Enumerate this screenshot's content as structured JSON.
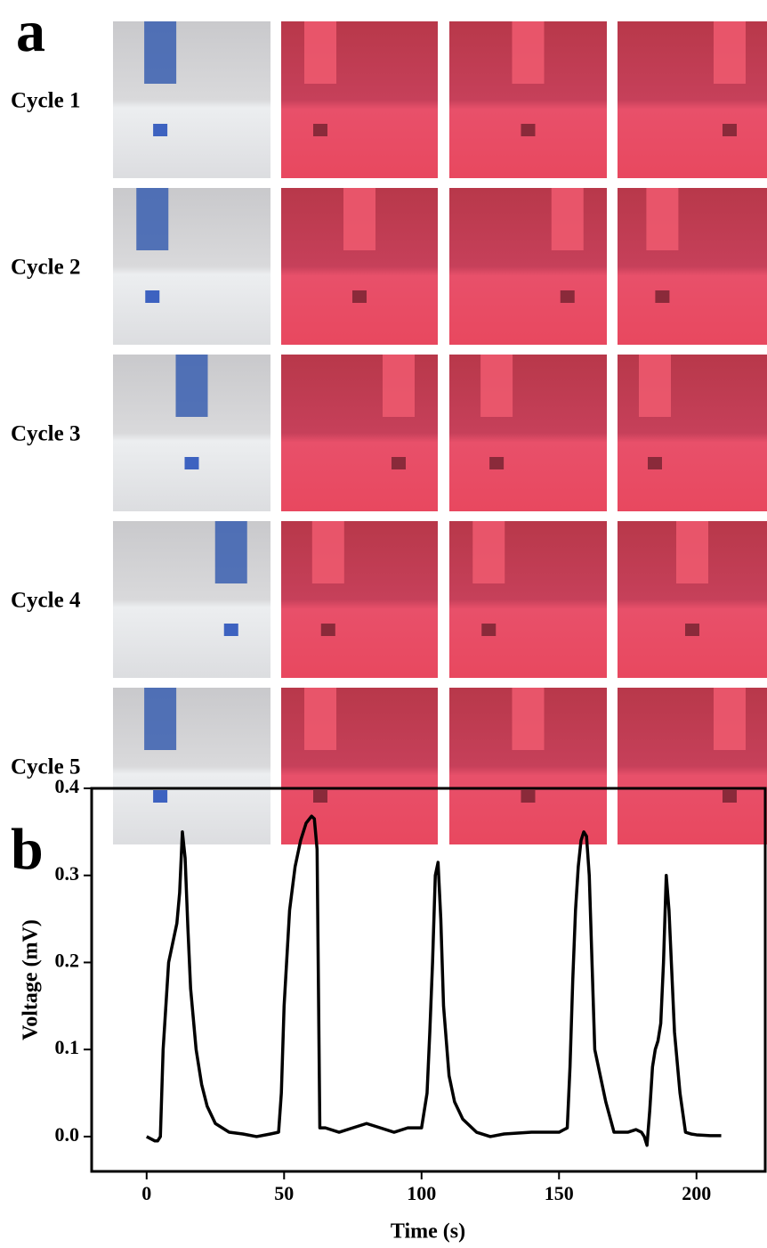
{
  "panels": {
    "a": "a",
    "b": "b"
  },
  "rows": [
    "Cycle 1",
    "Cycle 2",
    "Cycle 3",
    "Cycle 4",
    "Cycle 5"
  ],
  "chart_data": {
    "type": "line",
    "xlabel": "Time (s)",
    "ylabel": "Voltage (mV)",
    "color": "#000000",
    "xlim": [
      -20,
      225
    ],
    "ylim": [
      -0.04,
      0.4
    ],
    "xticks": [
      0,
      50,
      100,
      150,
      200
    ],
    "yticks": [
      {
        "value": 0,
        "label": "0.0"
      },
      0.1,
      0.2,
      0.3,
      0.4
    ],
    "x": [
      0,
      3,
      4,
      5,
      6,
      8,
      9,
      10,
      11,
      12,
      13,
      14,
      15,
      16,
      18,
      20,
      22,
      25,
      30,
      35,
      40,
      45,
      48,
      49,
      50,
      52,
      54,
      56,
      58,
      60,
      61,
      62,
      63,
      65,
      70,
      75,
      80,
      85,
      90,
      95,
      100,
      102,
      103,
      104,
      105,
      106,
      107,
      108,
      110,
      112,
      115,
      120,
      125,
      130,
      140,
      150,
      153,
      154,
      155,
      156,
      157,
      158,
      159,
      160,
      161,
      162,
      163,
      165,
      167,
      170,
      175,
      178,
      180,
      181,
      182,
      183,
      184,
      185,
      186,
      187,
      188,
      189,
      190,
      191,
      192,
      194,
      196,
      198,
      200,
      205,
      209
    ],
    "values": [
      0.0,
      -0.005,
      -0.005,
      0.0,
      0.1,
      0.2,
      0.215,
      0.23,
      0.245,
      0.28,
      0.35,
      0.32,
      0.24,
      0.17,
      0.1,
      0.06,
      0.035,
      0.015,
      0.005,
      0.003,
      0.0,
      0.003,
      0.005,
      0.05,
      0.15,
      0.26,
      0.31,
      0.34,
      0.36,
      0.368,
      0.365,
      0.33,
      0.01,
      0.01,
      0.005,
      0.01,
      0.015,
      0.01,
      0.005,
      0.01,
      0.01,
      0.05,
      0.12,
      0.2,
      0.3,
      0.315,
      0.25,
      0.15,
      0.07,
      0.04,
      0.02,
      0.005,
      0.0,
      0.003,
      0.005,
      0.005,
      0.01,
      0.08,
      0.18,
      0.26,
      0.31,
      0.34,
      0.35,
      0.345,
      0.3,
      0.2,
      0.1,
      0.07,
      0.04,
      0.005,
      0.005,
      0.008,
      0.005,
      0.0,
      -0.01,
      0.03,
      0.08,
      0.1,
      0.11,
      0.13,
      0.2,
      0.3,
      0.26,
      0.19,
      0.12,
      0.05,
      0.005,
      0.003,
      0.002,
      0.001,
      0.001
    ]
  }
}
